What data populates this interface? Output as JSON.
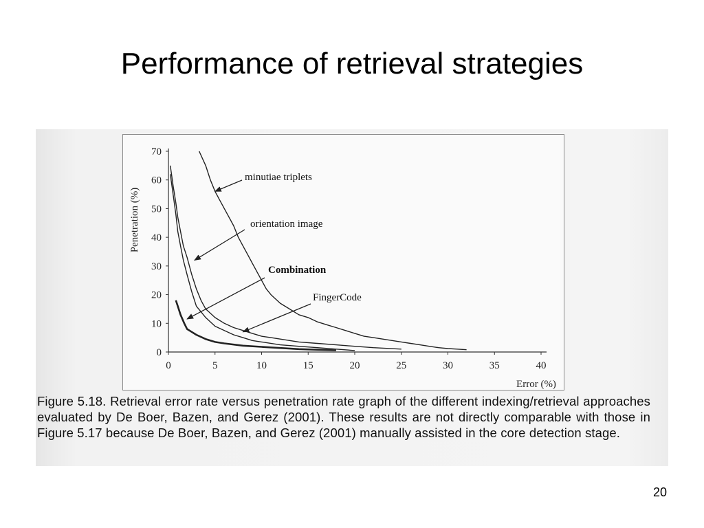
{
  "slide": {
    "title": "Performance of retrieval strategies",
    "page_number": "20",
    "caption": "Figure 5.18. Retrieval error rate versus penetration rate graph of the different indexing/retrieval approaches evaluated by De Boer, Bazen, and Gerez (2001). These results are not directly comparable with those in Figure 5.17 because De Boer, Bazen, and Gerez (2001) manually assisted in the core detection stage."
  },
  "chart_data": {
    "type": "line",
    "xlabel": "Error (%)",
    "ylabel": "Penetration (%)",
    "xlim": [
      0,
      40
    ],
    "ylim": [
      0,
      70
    ],
    "xticks": [
      "0",
      "5",
      "10",
      "15",
      "20",
      "25",
      "30",
      "35",
      "40"
    ],
    "yticks": [
      "0",
      "10",
      "20",
      "30",
      "40",
      "50",
      "60",
      "70"
    ],
    "grid": false,
    "legend": "none",
    "series": [
      {
        "name": "minutiae triplets",
        "x": [
          3.3,
          4.0,
          4.5,
          5.0,
          5.5,
          6.0,
          6.5,
          7.0,
          7.5,
          8.0,
          8.5,
          9.0,
          9.5,
          10.0,
          10.5,
          11.0,
          12.0,
          13.0,
          14.0,
          15.0,
          16.0,
          17.0,
          18.0,
          19.0,
          20.0,
          21.0,
          22.0,
          23.0,
          24.0,
          25.0,
          26.0,
          27.0,
          28.0,
          29.0,
          30.0,
          31.0,
          32.0
        ],
        "y": [
          70,
          65,
          60,
          56,
          53,
          50,
          47,
          44,
          40,
          37,
          34,
          31,
          28,
          25,
          22,
          20,
          17,
          15,
          13,
          12,
          10.5,
          9.5,
          8.5,
          7.5,
          6.5,
          5.5,
          5,
          4.5,
          4,
          3.5,
          3,
          2.5,
          2,
          1.5,
          1.2,
          1,
          0.8
        ]
      },
      {
        "name": "orientation image",
        "x": [
          0.2,
          0.5,
          0.8,
          1.0,
          1.3,
          1.6,
          2.0,
          2.5,
          3.0,
          3.5,
          4.0,
          5.0,
          6.0,
          7.0,
          8.0,
          9.0,
          10.0,
          11.0,
          12.0,
          14.0,
          16.0,
          18.0,
          20.0,
          22.0,
          25.0
        ],
        "y": [
          65,
          58,
          52,
          47,
          42,
          37,
          33,
          27,
          22,
          18,
          15,
          12,
          10,
          8.5,
          7.5,
          6.5,
          5.5,
          5,
          4.5,
          3.5,
          3,
          2.5,
          2,
          1.5,
          1
        ]
      },
      {
        "name": "Combination",
        "x": [
          0.8,
          1.0,
          1.3,
          1.7,
          2.0,
          2.5,
          3.0,
          4.0,
          5.0,
          6.0,
          8.0,
          10.0,
          12.0,
          14.0,
          16.0,
          18.0
        ],
        "y": [
          18,
          16,
          13,
          10,
          8,
          7,
          6,
          4.5,
          3.5,
          3,
          2.2,
          1.8,
          1.4,
          1.0,
          0.8,
          0.6
        ]
      },
      {
        "name": "FingerCode",
        "x": [
          0.2,
          0.5,
          0.8,
          1.0,
          1.3,
          1.6,
          2.0,
          2.5,
          3.0,
          4.0,
          5.0,
          6.0,
          7.0,
          8.0,
          9.0,
          10.0,
          12.0,
          14.0,
          16.0,
          18.0,
          20.0
        ],
        "y": [
          62,
          55,
          48,
          42,
          37,
          32,
          27,
          21,
          16,
          12,
          9,
          7.5,
          6,
          5,
          4,
          3.5,
          2.5,
          2,
          1.5,
          1,
          0.5
        ]
      }
    ],
    "annotations": [
      {
        "text": "minutiae triplets",
        "series": "minutiae triplets"
      },
      {
        "text": "orientation image",
        "series": "orientation image"
      },
      {
        "text": "Combination",
        "series": "Combination",
        "bold": true
      },
      {
        "text": "FingerCode",
        "series": "FingerCode"
      }
    ]
  }
}
